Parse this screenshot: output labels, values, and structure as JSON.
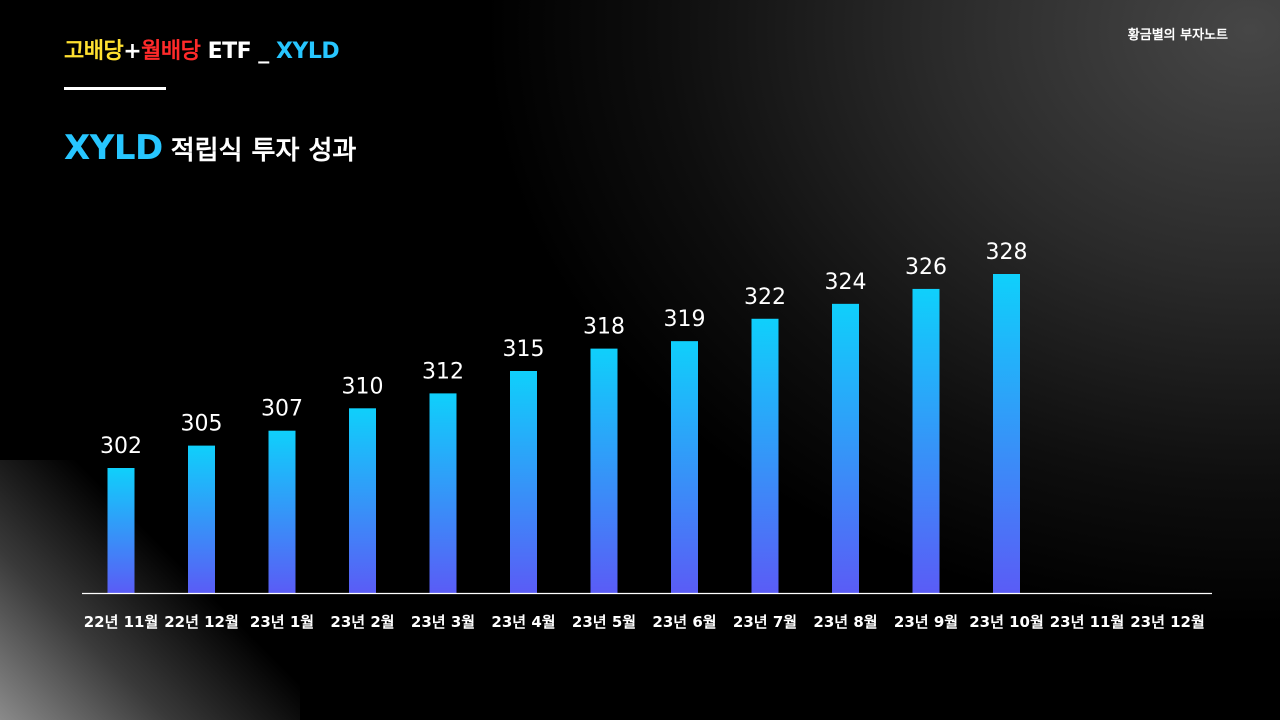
{
  "header": {
    "title_part1": "고배당",
    "title_plus": "+",
    "title_part2": "월배당",
    "title_part3": " ETF _ ",
    "title_ticker": "XYLD",
    "author": "황금별의 부자노트"
  },
  "subtitle": {
    "ticker": "XYLD",
    "text": "적립식 투자 성과"
  },
  "colors": {
    "bar_top": "#0fd0fb",
    "bar_bottom": "#5a5cf6",
    "accent_cyan": "#27c6ff",
    "accent_yellow": "#ffe030",
    "accent_red": "#ff2a2a"
  },
  "chart_data": {
    "type": "bar",
    "categories": [
      "22년 11월",
      "22년 12월",
      "23년 1월",
      "23년 2월",
      "23년 3월",
      "23년 4월",
      "23년 5월",
      "23년 6월",
      "23년 7월",
      "23년 8월",
      "23년 9월",
      "23년 10월",
      "23년 11월",
      "23년 12월"
    ],
    "values": [
      302,
      305,
      307,
      310,
      312,
      315,
      318,
      319,
      322,
      324,
      326,
      328,
      null,
      null
    ],
    "title": "",
    "xlabel": "",
    "ylabel": "",
    "ylim": [
      285,
      335
    ],
    "grid": false,
    "legend": "none"
  }
}
